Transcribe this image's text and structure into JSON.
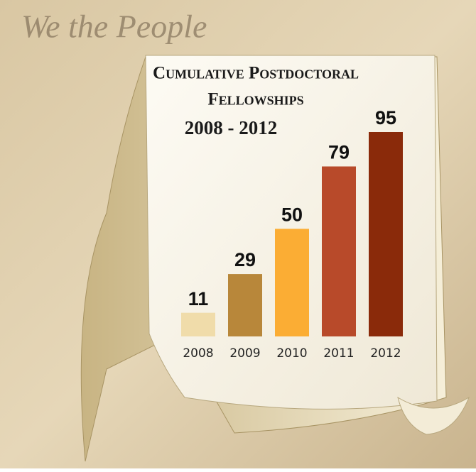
{
  "chart_data": {
    "type": "bar",
    "background_text": "We the People",
    "title_lines": [
      "Cumulative Postdoctoral",
      "Fellowships"
    ],
    "subtitle": "2008 - 2012",
    "categories": [
      "2008",
      "2009",
      "2010",
      "2011",
      "2012"
    ],
    "values": [
      11,
      29,
      50,
      79,
      95
    ],
    "colors": [
      "#f0dcaa",
      "#b8873a",
      "#fbad34",
      "#b84a2a",
      "#8a2a0a"
    ]
  }
}
